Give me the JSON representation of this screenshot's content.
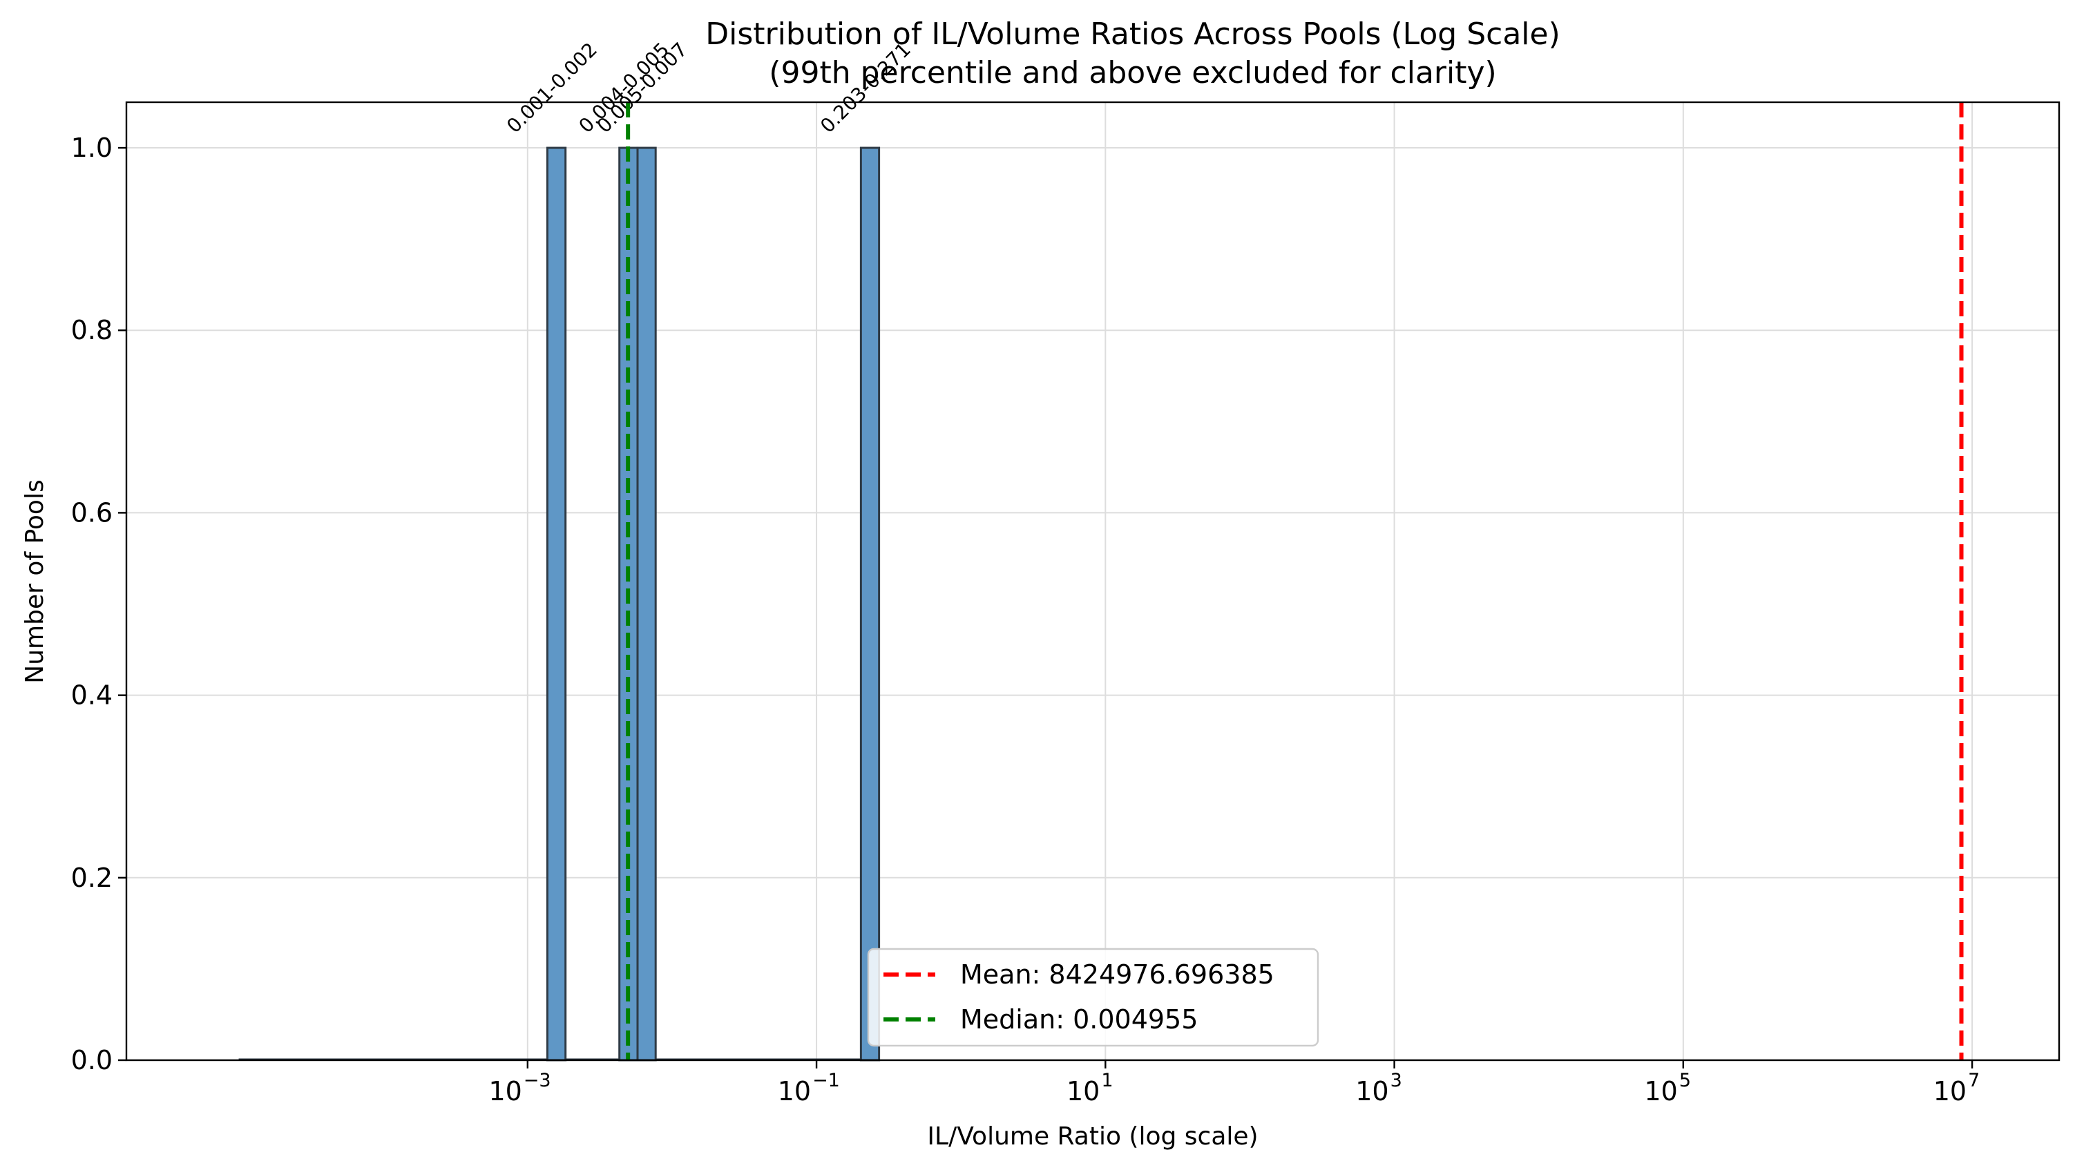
{
  "chart_data": {
    "type": "bar",
    "title": "Distribution of IL/Volume Ratios Across Pools (Log Scale)",
    "subtitle": "(99th percentile and above excluded for clarity)",
    "xlabel": "IL/Volume Ratio (log scale)",
    "ylabel": "Number of Pools",
    "x_scale": "log",
    "xlim": [
      1.67e-06,
      40000000
    ],
    "ylim": [
      0,
      1.05
    ],
    "grid": true,
    "x_ticks": [
      {
        "value": 0.001,
        "base": "10",
        "exp": "−3"
      },
      {
        "value": 0.1,
        "base": "10",
        "exp": "−1"
      },
      {
        "value": 10,
        "base": "10",
        "exp": "1"
      },
      {
        "value": 1000,
        "base": "10",
        "exp": "3"
      },
      {
        "value": 100000,
        "base": "10",
        "exp": "5"
      },
      {
        "value": 10000000,
        "base": "10",
        "exp": "7"
      }
    ],
    "y_ticks": [
      "0.0",
      "0.2",
      "0.4",
      "0.6",
      "0.8",
      "1.0"
    ],
    "y_tick_values": [
      0,
      0.2,
      0.4,
      0.6,
      0.8,
      1.0
    ],
    "baseline_range": [
      1e-05,
      0.2
    ],
    "bars": [
      {
        "x0": 0.00137,
        "x1": 0.00183,
        "count": 1,
        "label": "0.001-0.002"
      },
      {
        "x0": 0.00432,
        "x1": 0.00577,
        "count": 1,
        "label": "0.004-0.005"
      },
      {
        "x0": 0.00577,
        "x1": 0.0077,
        "count": 1,
        "label": "0.005-0.007"
      },
      {
        "x0": 0.203,
        "x1": 0.271,
        "count": 1,
        "label": "0.203-0.271"
      }
    ],
    "reference_lines": [
      {
        "name": "mean",
        "value": 8424976.696385,
        "color": "#ff0000",
        "legend": "Mean: 8424976.696385"
      },
      {
        "name": "median",
        "value": 0.004955,
        "color": "#008000",
        "legend": "Median: 0.004955"
      }
    ],
    "bar_color": "#5f97c6",
    "bar_edge_color": "#2f3b46",
    "legend_placement": "lower-center"
  }
}
